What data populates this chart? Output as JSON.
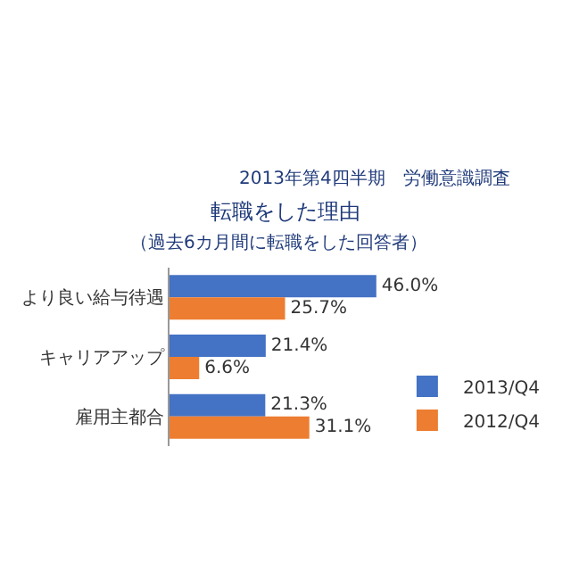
{
  "chart_data": {
    "type": "bar",
    "orientation": "horizontal",
    "title": "転職をした理由",
    "subtitle": "（過去6カ月間に転職をした回答者）",
    "annotations": [
      "2013年第4四半期　労働意識調査"
    ],
    "categories": [
      "より良い給与待遇",
      "キャリアアップ",
      "雇用主都合"
    ],
    "series": [
      {
        "name": "2013/Q4",
        "color": "#4472c4",
        "values": [
          46.0,
          21.4,
          21.3
        ],
        "value_labels": [
          "46.0%",
          "21.4%",
          "21.3%"
        ]
      },
      {
        "name": "2012/Q4",
        "color": "#ed7d31",
        "values": [
          25.7,
          6.6,
          31.1
        ],
        "value_labels": [
          "25.7%",
          "6.6%",
          "31.1%"
        ]
      }
    ],
    "legend": "bottom right",
    "grid": false,
    "tick_labels": "y"
  }
}
